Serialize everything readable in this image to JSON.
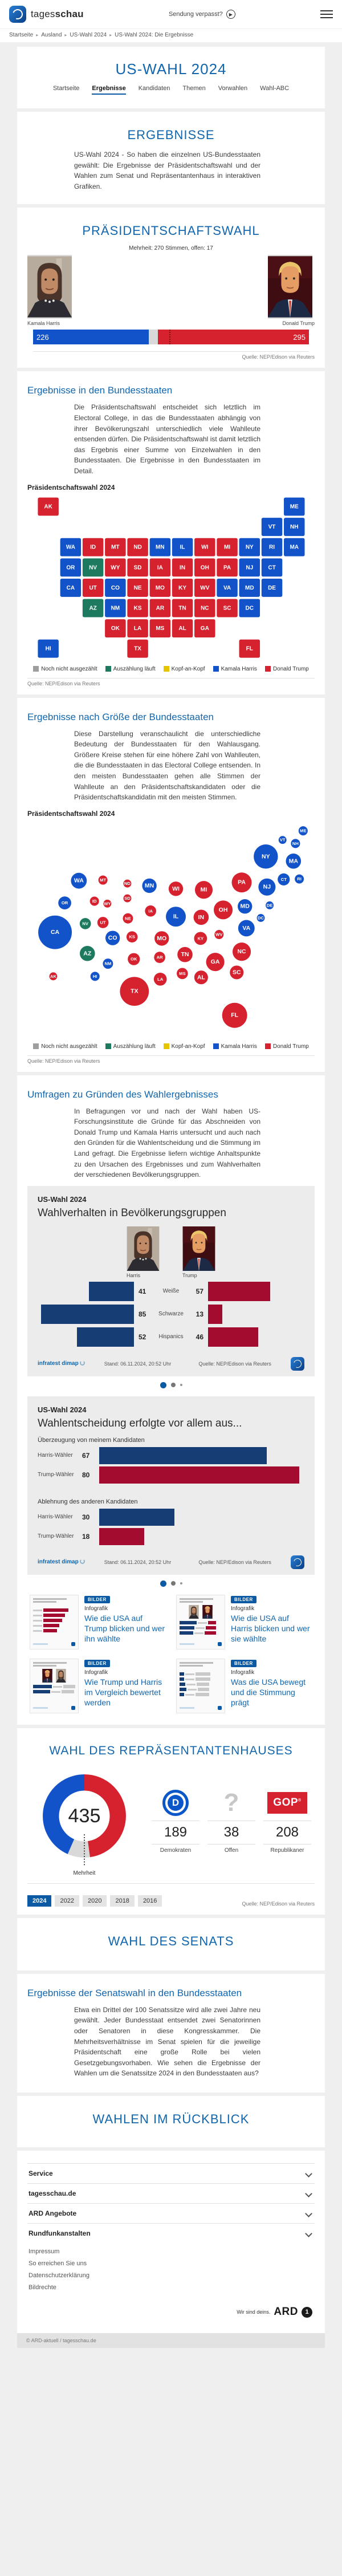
{
  "colors": {
    "harris": "#1353c9",
    "trump": "#d6212e",
    "counting": "#1d7a5f",
    "tie": "#e7c400",
    "open": "#9e9e9e",
    "accent": "#0b5aa3",
    "heading": "#1166ae",
    "card_blue": "#173d75",
    "card_red": "#a30c2e"
  },
  "header": {
    "brand_light": "tages",
    "brand_bold": "schau",
    "center_link": "Sendung verpasst?"
  },
  "breadcrumb": {
    "items": [
      "Startseite",
      "Ausland",
      "US-Wahl 2024",
      "US-Wahl 2024: Die Ergebnisse"
    ]
  },
  "page_title": "US-WAHL 2024",
  "tabs": [
    {
      "label": "Startseite",
      "active": false
    },
    {
      "label": "Ergebnisse",
      "active": true
    },
    {
      "label": "Kandidaten",
      "active": false
    },
    {
      "label": "Themen",
      "active": false
    },
    {
      "label": "Vorwahlen",
      "active": false
    },
    {
      "label": "Wahl-ABC",
      "active": false
    }
  ],
  "intro": {
    "title": "ERGEBNISSE",
    "text": "US-Wahl 2024 - So haben die einzelnen US-Bundesstaaten gewählt: Die Ergebnisse der Präsidentschaftswahl und der Wahlen zum Senat und Repräsentantenhaus in interaktiven Grafiken."
  },
  "president": {
    "title": "PRÄSIDENTSCHAFTSWAHL",
    "majority_note": "Mehrheit: 270 Stimmen, offen: 17",
    "harris_name": "Kamala Harris",
    "trump_name": "Donald Trump",
    "harris_votes": "226",
    "trump_votes": "295",
    "source": "Quelle: NEP/Edison via Reuters"
  },
  "states_section": {
    "title": "Ergebnisse in den Bundesstaaten",
    "text": "Die Präsidentschaftswahl entscheidet sich letztlich im Electoral College, in das die Bundesstaaten abhängig von ihrer Bevölkerungszahl unterschiedlich viele Wahlleute entsenden dürfen. Die Präsidentschaftswahl ist damit letztlich das Ergebnis einer Summe von Einzelwahlen in den Bundesstaaten. Die Ergebnisse in den Bundesstaaten im Detail.",
    "chart_label": "Präsidentschaftswahl 2024",
    "source": "Quelle: NEP/Edison via Reuters"
  },
  "size_section": {
    "title": "Ergebnisse nach Größe der Bundesstaaten",
    "text": "Diese Darstellung veranschaulicht die unterschiedliche Bedeutung der Bundesstaaten für den Wahlausgang. Größere Kreise stehen für eine höhere Zahl von Wahlleuten, die die Bundesstaaten in das Electoral College entsenden. In den meisten Bundesstaaten gehen alle Stimmen der Wahlleute an den Präsidentschaftskandidaten oder die Präsidentschaftskandidatin mit den meisten Stimmen.",
    "chart_label": "Präsidentschaftswahl 2024",
    "source": "Quelle: NEP/Edison via Reuters"
  },
  "map_legend": [
    {
      "label": "Noch nicht ausgezählt",
      "color": "#9e9e9e"
    },
    {
      "label": "Auszählung läuft",
      "color": "#1d7a5f"
    },
    {
      "label": "Kopf-an-Kopf",
      "color": "#e7c400"
    },
    {
      "label": "Kamala Harris",
      "color": "#1353c9"
    },
    {
      "label": "Donald Trump",
      "color": "#d6212e"
    }
  ],
  "survey_section": {
    "title": "Umfragen zu Gründen des Wahlergebnisses",
    "text": "In Befragungen vor und nach der Wahl haben US-Forschungsinstitute die Gründe für das Abschneiden von Donald Trump und Kamala Harris untersucht und auch nach den Gründen für die Wahlentscheidung und die Stimmung im Land gefragt. Die Ergebnisse liefern wichtige Anhaltspunkte zu den Ursachen des Ergebnisses und zum Wahlverhalten der verschiedenen Bevölkerungsgruppen."
  },
  "card1": {
    "kicker": "US-Wahl 2024",
    "title": "Wahlverhalten in Bevölkerungsgruppen",
    "harris_label": "Harris",
    "trump_label": "Trump",
    "brand": "infratest dimap",
    "stand": "Stand:  06.11.2024, 20:52 Uhr",
    "source": "Quelle: NEP/Edison via Reuters"
  },
  "card2": {
    "kicker": "US-Wahl 2024",
    "title": "Wahlentscheidung erfolgte vor allem aus...",
    "brand": "infratest dimap",
    "stand": "Stand:  06.11.2024, 20:52 Uhr",
    "source": "Quelle: NEP/Edison via Reuters"
  },
  "teasers": [
    {
      "badge": "BILDER",
      "kicker": "Infografik",
      "title": "Wie die USA auf Trump blicken und wer ihn wählte"
    },
    {
      "badge": "BILDER",
      "kicker": "Infografik",
      "title": "Wie die USA auf Harris blicken und wer sie wählte"
    },
    {
      "badge": "BILDER",
      "kicker": "Infografik",
      "title": "Wie Trump und Harris im Vergleich bewertet werden"
    },
    {
      "badge": "BILDER",
      "kicker": "Infografik",
      "title": "Was die USA bewegt und die Stimmung prägt"
    }
  ],
  "house": {
    "title": "WAHL DES REPRÄSENTANTENHAUSES",
    "total": "435",
    "majority_label": "Mehrheit",
    "dem_label": "Demokraten",
    "dem_value": "189",
    "open_label": "Offen",
    "open_value": "38",
    "rep_label": "Republikaner",
    "rep_value": "208",
    "gop_text": "GOP",
    "source": "Quelle: NEP/Edison via Reuters",
    "years": [
      "2024",
      "2022",
      "2020",
      "2018",
      "2016"
    ],
    "active_year": "2024"
  },
  "senate": {
    "title": "WAHL DES SENATS",
    "sub_title": "Ergebnisse der Senatswahl in den Bundesstaaten",
    "text": "Etwa ein Drittel der 100 Senatssitze wird alle zwei Jahre neu gewählt. Jeder Bundesstaat entsendet zwei Senatorinnen oder Senatoren in diese Kongresskammer. Die Mehrheitsverhältnisse im Senat spielen für die jeweilige Präsidentschaft eine große Rolle bei vielen Gesetzgebungsvorhaben. Wie sehen die Ergebnisse der Wahlen um die Senatssitze 2024 in den Bundesstaaten aus?"
  },
  "review": {
    "title": "WAHLEN IM RÜCKBLICK"
  },
  "footer": {
    "accordions": [
      "Service",
      "tagesschau.de",
      "ARD Angebote",
      "Rundfunkanstalten"
    ],
    "links": [
      "Impressum",
      "So erreichen Sie uns",
      "Datenschutzerklärung",
      "Bildrechte"
    ],
    "ard_claim": "Wir sind deins.",
    "ard_word": "ARD",
    "copyright": "© ARD-aktuell / tagesschau.de"
  },
  "chart_data": [
    {
      "type": "bar",
      "title": "Präsidentschaftswahl — Electoral College",
      "series": [
        {
          "name": "Kamala Harris",
          "value": 226
        },
        {
          "name": "offen",
          "value": 17
        },
        {
          "name": "Donald Trump",
          "value": 295
        }
      ],
      "majority": 270
    },
    {
      "type": "heatmap",
      "subtype": "choropleth-tile-map",
      "title": "Präsidentschaftswahl 2024",
      "legend": [
        "Noch nicht ausgezählt",
        "Auszählung läuft",
        "Kopf-an-Kopf",
        "Kamala Harris",
        "Donald Trump"
      ],
      "states": [
        {
          "abbr": "AK",
          "ev": 3,
          "result": "trump",
          "geo": [
            8.4,
            71.3
          ],
          "grid": [
            0,
            0
          ]
        },
        {
          "abbr": "ME",
          "ev": 4,
          "result": "harris",
          "geo": [
            93.4,
            4.5
          ],
          "grid": [
            11,
            0
          ]
        },
        {
          "abbr": "VT",
          "ev": 3,
          "result": "harris",
          "geo": [
            86.4,
            8.7
          ],
          "grid": [
            10,
            1
          ]
        },
        {
          "abbr": "NH",
          "ev": 4,
          "result": "harris",
          "geo": [
            90.8,
            10.3
          ],
          "grid": [
            11,
            1
          ]
        },
        {
          "abbr": "WA",
          "ev": 12,
          "result": "harris",
          "geo": [
            17.1,
            27.4
          ],
          "grid": [
            1,
            2
          ]
        },
        {
          "abbr": "ID",
          "ev": 4,
          "result": "trump",
          "geo": [
            22.4,
            36.8
          ],
          "grid": [
            2,
            2
          ]
        },
        {
          "abbr": "MT",
          "ev": 4,
          "result": "trump",
          "geo": [
            25.3,
            27.1
          ],
          "grid": [
            3,
            2
          ]
        },
        {
          "abbr": "ND",
          "ev": 3,
          "result": "trump",
          "geo": [
            33.6,
            28.7
          ],
          "grid": [
            4,
            2
          ]
        },
        {
          "abbr": "MN",
          "ev": 10,
          "result": "harris",
          "geo": [
            41.1,
            29.7
          ],
          "grid": [
            5,
            2
          ]
        },
        {
          "abbr": "IL",
          "ev": 19,
          "result": "harris",
          "geo": [
            50.1,
            43.9
          ],
          "grid": [
            6,
            2
          ]
        },
        {
          "abbr": "WI",
          "ev": 10,
          "result": "trump",
          "geo": [
            50.1,
            31.1
          ],
          "grid": [
            7,
            2
          ]
        },
        {
          "abbr": "MI",
          "ev": 15,
          "result": "trump",
          "geo": [
            59.6,
            31.6
          ],
          "grid": [
            8,
            2
          ]
        },
        {
          "abbr": "NY",
          "ev": 28,
          "result": "harris",
          "geo": [
            80.7,
            16.3
          ],
          "grid": [
            9,
            2
          ]
        },
        {
          "abbr": "RI",
          "ev": 4,
          "result": "harris",
          "geo": [
            92.1,
            26.6
          ],
          "grid": [
            10,
            2
          ]
        },
        {
          "abbr": "MA",
          "ev": 11,
          "result": "harris",
          "geo": [
            90.1,
            18.4
          ],
          "grid": [
            11,
            2
          ]
        },
        {
          "abbr": "OR",
          "ev": 8,
          "result": "harris",
          "geo": [
            12.3,
            37.6
          ],
          "grid": [
            1,
            3
          ]
        },
        {
          "abbr": "NV",
          "ev": 6,
          "result": "counting",
          "geo": [
            19.3,
            47.1
          ],
          "grid": [
            2,
            3
          ]
        },
        {
          "abbr": "WY",
          "ev": 3,
          "result": "trump",
          "geo": [
            26.8,
            37.9
          ],
          "grid": [
            3,
            3
          ]
        },
        {
          "abbr": "SD",
          "ev": 3,
          "result": "trump",
          "geo": [
            33.6,
            35.5
          ],
          "grid": [
            4,
            3
          ]
        },
        {
          "abbr": "IA",
          "ev": 6,
          "result": "trump",
          "geo": [
            41.5,
            41.3
          ],
          "grid": [
            5,
            3
          ]
        },
        {
          "abbr": "IN",
          "ev": 11,
          "result": "trump",
          "geo": [
            58.7,
            44.2
          ],
          "grid": [
            6,
            3
          ]
        },
        {
          "abbr": "OH",
          "ev": 17,
          "result": "trump",
          "geo": [
            66.2,
            40.8
          ],
          "grid": [
            7,
            3
          ]
        },
        {
          "abbr": "PA",
          "ev": 19,
          "result": "trump",
          "geo": [
            72.5,
            28.2
          ],
          "grid": [
            8,
            3
          ]
        },
        {
          "abbr": "NJ",
          "ev": 14,
          "result": "harris",
          "geo": [
            81.1,
            30.3
          ],
          "grid": [
            9,
            3
          ]
        },
        {
          "abbr": "CT",
          "ev": 7,
          "result": "harris",
          "geo": [
            86.8,
            26.8
          ],
          "grid": [
            10,
            3
          ]
        },
        {
          "abbr": "CA",
          "ev": 54,
          "result": "harris",
          "geo": [
            9.0,
            51.1
          ],
          "grid": [
            1,
            4
          ]
        },
        {
          "abbr": "UT",
          "ev": 6,
          "result": "trump",
          "geo": [
            25.3,
            46.6
          ],
          "grid": [
            2,
            4
          ]
        },
        {
          "abbr": "CO",
          "ev": 10,
          "result": "harris",
          "geo": [
            28.6,
            53.7
          ],
          "grid": [
            3,
            4
          ]
        },
        {
          "abbr": "NE",
          "ev": 5,
          "result": "trump",
          "geo": [
            33.8,
            44.7
          ],
          "grid": [
            4,
            4
          ]
        },
        {
          "abbr": "MO",
          "ev": 10,
          "result": "trump",
          "geo": [
            45.3,
            53.9
          ],
          "grid": [
            5,
            4
          ]
        },
        {
          "abbr": "KY",
          "ev": 8,
          "result": "trump",
          "geo": [
            58.5,
            53.9
          ],
          "grid": [
            6,
            4
          ]
        },
        {
          "abbr": "WV",
          "ev": 4,
          "result": "trump",
          "geo": [
            64.8,
            52.1
          ],
          "grid": [
            7,
            4
          ]
        },
        {
          "abbr": "VA",
          "ev": 13,
          "result": "harris",
          "geo": [
            74.1,
            49.2
          ],
          "grid": [
            8,
            4
          ]
        },
        {
          "abbr": "MD",
          "ev": 10,
          "result": "harris",
          "geo": [
            73.6,
            39.2
          ],
          "grid": [
            9,
            4
          ]
        },
        {
          "abbr": "DE",
          "ev": 3,
          "result": "harris",
          "geo": [
            82.0,
            38.7
          ],
          "grid": [
            10,
            4
          ]
        },
        {
          "abbr": "AZ",
          "ev": 11,
          "result": "counting",
          "geo": [
            20.0,
            60.8
          ],
          "grid": [
            2,
            5
          ]
        },
        {
          "abbr": "NM",
          "ev": 5,
          "result": "harris",
          "geo": [
            27.0,
            65.5
          ],
          "grid": [
            3,
            5
          ]
        },
        {
          "abbr": "KS",
          "ev": 6,
          "result": "trump",
          "geo": [
            35.2,
            53.2
          ],
          "grid": [
            4,
            5
          ]
        },
        {
          "abbr": "AR",
          "ev": 6,
          "result": "trump",
          "geo": [
            44.6,
            62.6
          ],
          "grid": [
            5,
            5
          ]
        },
        {
          "abbr": "TN",
          "ev": 11,
          "result": "trump",
          "geo": [
            53.2,
            61.3
          ],
          "grid": [
            6,
            5
          ]
        },
        {
          "abbr": "NC",
          "ev": 16,
          "result": "trump",
          "geo": [
            72.5,
            60.0
          ],
          "grid": [
            7,
            5
          ]
        },
        {
          "abbr": "SC",
          "ev": 9,
          "result": "trump",
          "geo": [
            70.8,
            69.5
          ],
          "grid": [
            8,
            5
          ]
        },
        {
          "abbr": "DC",
          "ev": 3,
          "result": "harris",
          "geo": [
            79.0,
            44.5
          ],
          "grid": [
            9,
            5
          ]
        },
        {
          "abbr": "OK",
          "ev": 7,
          "result": "trump",
          "geo": [
            35.8,
            63.4
          ],
          "grid": [
            3,
            6
          ]
        },
        {
          "abbr": "LA",
          "ev": 8,
          "result": "trump",
          "geo": [
            44.8,
            72.6
          ],
          "grid": [
            4,
            6
          ]
        },
        {
          "abbr": "MS",
          "ev": 6,
          "result": "trump",
          "geo": [
            52.3,
            70.0
          ],
          "grid": [
            5,
            6
          ]
        },
        {
          "abbr": "AL",
          "ev": 9,
          "result": "trump",
          "geo": [
            58.7,
            71.8
          ],
          "grid": [
            6,
            6
          ]
        },
        {
          "abbr": "GA",
          "ev": 16,
          "result": "trump",
          "geo": [
            63.5,
            64.7
          ],
          "grid": [
            7,
            6
          ]
        },
        {
          "abbr": "HI",
          "ev": 4,
          "result": "harris",
          "geo": [
            22.6,
            71.3
          ],
          "grid": [
            0,
            7
          ]
        },
        {
          "abbr": "TX",
          "ev": 40,
          "result": "trump",
          "geo": [
            36.0,
            78.2
          ],
          "grid": [
            4,
            7
          ]
        },
        {
          "abbr": "FL",
          "ev": 30,
          "result": "trump",
          "geo": [
            70.1,
            89.2
          ],
          "grid": [
            9,
            7
          ]
        }
      ]
    },
    {
      "type": "scatter",
      "subtype": "bubble-cartogram",
      "title": "Präsidentschaftswahl 2024",
      "note": "Kreisfläche proportional zur Zahl der Wahlleute; Daten identisch mit chart_data[1].states"
    },
    {
      "type": "bar",
      "subtype": "butterfly",
      "title": "Wahlverhalten in Bevölkerungsgruppen",
      "categories": [
        "Weiße",
        "Schwarze",
        "Hispanics"
      ],
      "series": [
        {
          "name": "Harris",
          "values": [
            41,
            85,
            52
          ]
        },
        {
          "name": "Trump",
          "values": [
            57,
            13,
            46
          ]
        }
      ]
    },
    {
      "type": "bar",
      "title": "Wahlentscheidung erfolgte vor allem aus...",
      "groups": [
        {
          "label": "Überzeugung von meinem Kandidaten",
          "rows": [
            {
              "label": "Harris-Wähler",
              "value": 67,
              "color": "blue"
            },
            {
              "label": "Trump-Wähler",
              "value": 80,
              "color": "red"
            }
          ]
        },
        {
          "label": "Ablehnung des anderen Kandidaten",
          "rows": [
            {
              "label": "Harris-Wähler",
              "value": 30,
              "color": "blue"
            },
            {
              "label": "Trump-Wähler",
              "value": 18,
              "color": "red"
            }
          ]
        }
      ]
    },
    {
      "type": "pie",
      "subtype": "donut",
      "title": "Wahl des Repräsentantenhauses",
      "total": 435,
      "slices": [
        {
          "label": "Republikaner",
          "value": 208,
          "color": "#d6212e"
        },
        {
          "label": "Offen",
          "value": 38,
          "color": "#d9d9d9"
        },
        {
          "label": "Demokraten",
          "value": 189,
          "color": "#1353c9"
        }
      ],
      "center_label": "435",
      "sub_label": "Mehrheit"
    }
  ]
}
